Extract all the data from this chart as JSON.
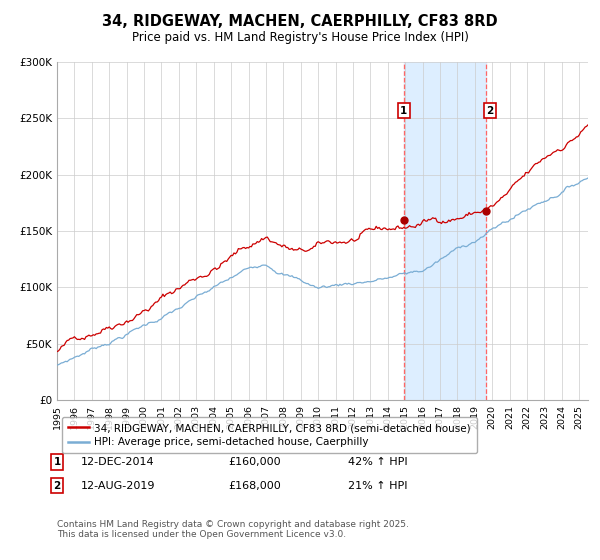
{
  "title": "34, RIDGEWAY, MACHEN, CAERPHILLY, CF83 8RD",
  "subtitle": "Price paid vs. HM Land Registry's House Price Index (HPI)",
  "red_label": "34, RIDGEWAY, MACHEN, CAERPHILLY, CF83 8RD (semi-detached house)",
  "blue_label": "HPI: Average price, semi-detached house, Caerphilly",
  "footnote": "Contains HM Land Registry data © Crown copyright and database right 2025.\nThis data is licensed under the Open Government Licence v3.0.",
  "annotation1_date": "12-DEC-2014",
  "annotation1_price": "£160,000",
  "annotation1_hpi": "42% ↑ HPI",
  "annotation2_date": "12-AUG-2019",
  "annotation2_price": "£168,000",
  "annotation2_hpi": "21% ↑ HPI",
  "sale1_year": 2014.92,
  "sale2_year": 2019.62,
  "sale1_price": 160000,
  "sale2_price": 168000,
  "red_color": "#cc0000",
  "blue_color": "#7aadd4",
  "shade_color": "#ddeeff",
  "dashed_color": "#ff6666",
  "dot_color": "#aa0000",
  "background_color": "#ffffff",
  "grid_color": "#cccccc",
  "ylim": [
    0,
    300000
  ],
  "xlim_start": 1995,
  "xlim_end": 2025.5
}
